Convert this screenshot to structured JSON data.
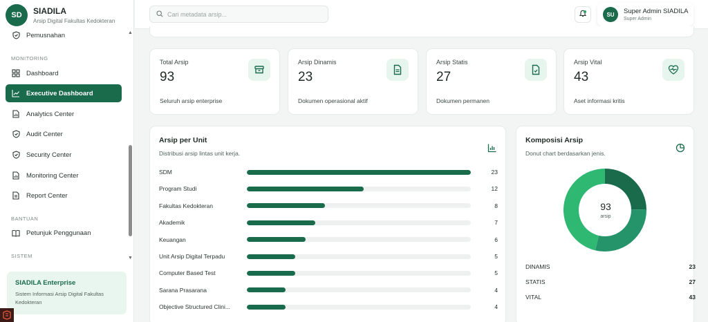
{
  "brand": {
    "logo": "SD",
    "name": "SIADILA",
    "subtitle": "Arsip Digital Fakultas Kedokteran"
  },
  "sidebar": {
    "items": [
      {
        "label": "Pemusnahan",
        "icon": "shield-icon",
        "active": false
      },
      {
        "label": "Dashboard",
        "icon": "grid-icon",
        "active": false
      },
      {
        "label": "Executive Dashboard",
        "icon": "trend-icon",
        "active": true
      },
      {
        "label": "Analytics Center",
        "icon": "document-icon",
        "active": false
      },
      {
        "label": "Audit Center",
        "icon": "shield-icon",
        "active": false
      },
      {
        "label": "Security Center",
        "icon": "shield-icon",
        "active": false
      },
      {
        "label": "Monitoring Center",
        "icon": "document-icon",
        "active": false
      },
      {
        "label": "Report Center",
        "icon": "document-icon",
        "active": false
      },
      {
        "label": "Petunjuk Penggunaan",
        "icon": "book-icon",
        "active": false
      }
    ],
    "sections": {
      "monitoring": "MONITORING",
      "bantuan": "BANTUAN",
      "sistem": "SISTEM"
    },
    "enterprise": {
      "title": "SIADILA Enterprise",
      "description": "Sistem Informasi Arsip Digital Fakultas Kedokteran"
    }
  },
  "search": {
    "placeholder": "Cari metadata arsip..."
  },
  "user": {
    "initials": "SU",
    "name": "Super Admin SIADILA",
    "role": "Super Admin"
  },
  "stats": [
    {
      "label": "Total Arsip",
      "value": "93",
      "description": "Seluruh arsip enterprise",
      "icon": "archive-box-icon"
    },
    {
      "label": "Arsip Dinamis",
      "value": "23",
      "description": "Dokumen operasional aktif",
      "icon": "document-text-icon"
    },
    {
      "label": "Arsip Statis",
      "value": "27",
      "description": "Dokumen permanen",
      "icon": "document-check-icon"
    },
    {
      "label": "Arsip Vital",
      "value": "43",
      "description": "Aset informasi kritis",
      "icon": "heartbeat-icon"
    }
  ],
  "unit_panel": {
    "title": "Arsip per Unit",
    "subtitle": "Distribusi arsip lintas unit kerja.",
    "icon": "bar-chart-icon",
    "rows": [
      {
        "label": "SDM",
        "value": 23
      },
      {
        "label": "Program Studi",
        "value": 12
      },
      {
        "label": "Fakultas Kedokteran",
        "value": 8
      },
      {
        "label": "Akademik",
        "value": 7
      },
      {
        "label": "Keuangan",
        "value": 6
      },
      {
        "label": "Unit Arsip Digital Terpadu",
        "value": 5
      },
      {
        "label": "Computer Based Test",
        "value": 5
      },
      {
        "label": "Sarana Prasarana",
        "value": 4
      },
      {
        "label": "Objective Structured Clini...",
        "value": 4
      }
    ],
    "max": 23
  },
  "composition_panel": {
    "title": "Komposisi Arsip",
    "subtitle": "Donut chart berdasarkan jenis.",
    "icon": "pie-chart-icon",
    "total": "93",
    "unit": "arsip",
    "segments": [
      {
        "label": "DINAMIS",
        "value": 23,
        "color": "#1a6b4c"
      },
      {
        "label": "STATIS",
        "value": 27,
        "color": "#26946a"
      },
      {
        "label": "VITAL",
        "value": 43,
        "color": "#2fb872"
      }
    ]
  }
}
